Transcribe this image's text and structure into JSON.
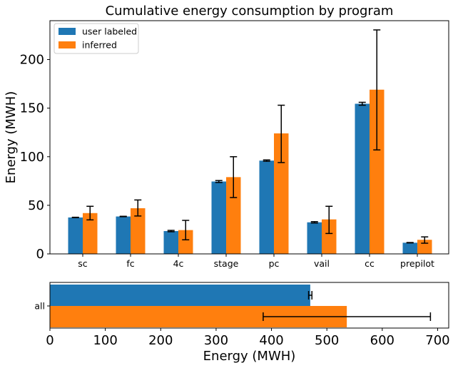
{
  "chart_data": [
    {
      "type": "bar",
      "title": "Cumulative energy consumption by program",
      "xlabel": "",
      "ylabel": "Energy (MWH)",
      "ylim": [
        0,
        240
      ],
      "yticks": [
        0,
        50,
        100,
        150,
        200
      ],
      "categories": [
        "sc",
        "fc",
        "4c",
        "stage",
        "pc",
        "vail",
        "cc",
        "prepilot"
      ],
      "legend_position": "top-left",
      "grid": false,
      "series": [
        {
          "name": "user labeled",
          "color": "#1f77b4",
          "values": [
            37.5,
            38.5,
            23.5,
            74.5,
            96,
            32.5,
            154.5,
            11.5
          ],
          "error_low": [
            37.3,
            38.3,
            22.8,
            73.5,
            95.3,
            31.8,
            153,
            11.3
          ],
          "error_high": [
            37.7,
            38.7,
            24.2,
            75.5,
            96.7,
            33.2,
            156,
            11.7
          ]
        },
        {
          "name": "inferred",
          "color": "#ff7f0e",
          "values": [
            42,
            47,
            24.5,
            79,
            124,
            35.5,
            169,
            14.5
          ],
          "error_low": [
            35,
            39,
            14.5,
            58,
            94,
            21,
            107,
            11
          ],
          "error_high": [
            49,
            55.5,
            34.5,
            100,
            153,
            49,
            230.5,
            17.5
          ]
        }
      ]
    },
    {
      "type": "bar",
      "orientation": "horizontal",
      "title": "",
      "xlabel": "Energy (MWH)",
      "ylabel": "",
      "xlim": [
        0,
        720
      ],
      "xticks": [
        0,
        100,
        200,
        300,
        400,
        500,
        600,
        700
      ],
      "categories": [
        "all"
      ],
      "grid": false,
      "series": [
        {
          "name": "user labeled",
          "color": "#1f77b4",
          "values": [
            470
          ],
          "error_low": [
            467
          ],
          "error_high": [
            473
          ]
        },
        {
          "name": "inferred",
          "color": "#ff7f0e",
          "values": [
            536
          ],
          "error_low": [
            385
          ],
          "error_high": [
            687
          ]
        }
      ]
    }
  ]
}
